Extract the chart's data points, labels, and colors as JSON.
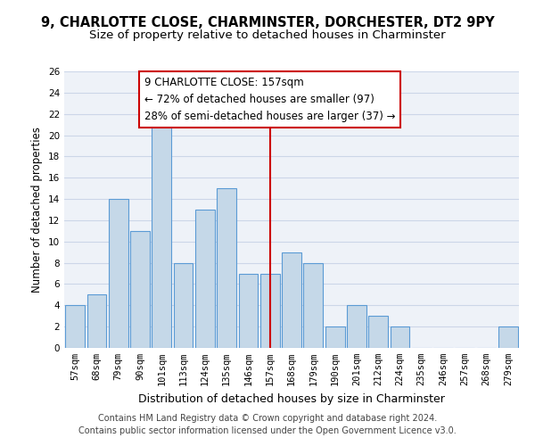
{
  "title": "9, CHARLOTTE CLOSE, CHARMINSTER, DORCHESTER, DT2 9PY",
  "subtitle": "Size of property relative to detached houses in Charminster",
  "xlabel": "Distribution of detached houses by size in Charminster",
  "ylabel": "Number of detached properties",
  "categories": [
    "57sqm",
    "68sqm",
    "79sqm",
    "90sqm",
    "101sqm",
    "113sqm",
    "124sqm",
    "135sqm",
    "146sqm",
    "157sqm",
    "168sqm",
    "179sqm",
    "190sqm",
    "201sqm",
    "212sqm",
    "224sqm",
    "235sqm",
    "246sqm",
    "257sqm",
    "268sqm",
    "279sqm"
  ],
  "values": [
    4,
    5,
    14,
    11,
    21,
    8,
    13,
    15,
    7,
    7,
    9,
    8,
    2,
    4,
    3,
    2,
    0,
    0,
    0,
    0,
    2
  ],
  "bar_color": "#c5d8e8",
  "bar_edge_color": "#5b9bd5",
  "highlight_index": 9,
  "vline_color": "#cc0000",
  "annotation_title": "9 CHARLOTTE CLOSE: 157sqm",
  "annotation_line1": "← 72% of detached houses are smaller (97)",
  "annotation_line2": "28% of semi-detached houses are larger (37) →",
  "annotation_box_color": "#cc0000",
  "annotation_bg_color": "#ffffff",
  "ylim": [
    0,
    26
  ],
  "yticks": [
    0,
    2,
    4,
    6,
    8,
    10,
    12,
    14,
    16,
    18,
    20,
    22,
    24,
    26
  ],
  "grid_color": "#ccd6e8",
  "bg_color": "#eef2f8",
  "footer1": "Contains HM Land Registry data © Crown copyright and database right 2024.",
  "footer2": "Contains public sector information licensed under the Open Government Licence v3.0.",
  "title_fontsize": 10.5,
  "subtitle_fontsize": 9.5,
  "xlabel_fontsize": 9,
  "ylabel_fontsize": 8.5,
  "tick_fontsize": 7.5,
  "annotation_fontsize": 8.5,
  "footer_fontsize": 7
}
